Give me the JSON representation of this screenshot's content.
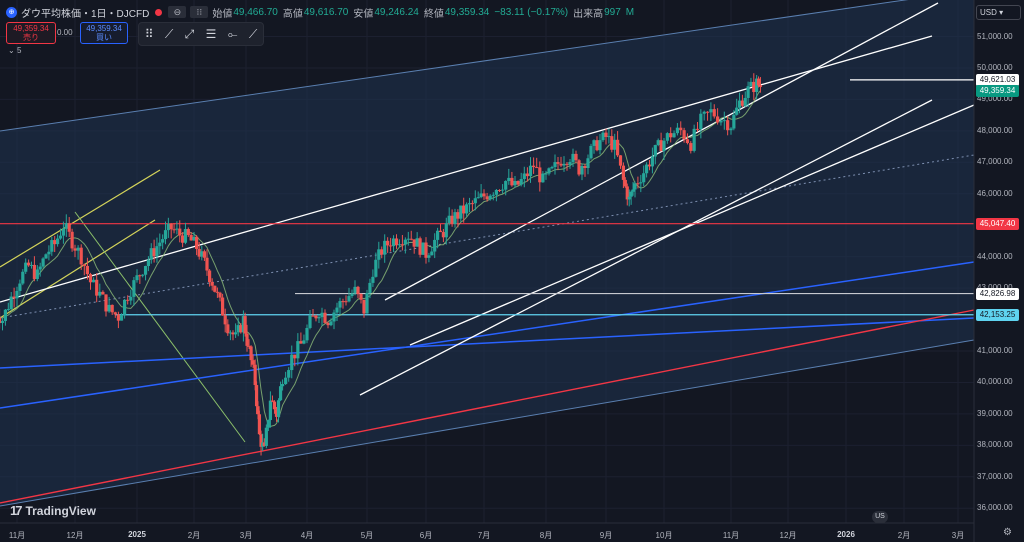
{
  "header": {
    "symbol_icon": "globe-icon",
    "title": "ダウ平均株価・1日・DJCFD",
    "open_label": "始値",
    "open_value": "49,466.70",
    "high_label": "高値",
    "high_value": "49,616.70",
    "low_label": "安値",
    "low_value": "49,246.24",
    "close_label": "終値",
    "close_value": "49,359.34",
    "change": "−83.11 (−0.17%)",
    "volume_label": "出来高",
    "volume_value": "997",
    "volume_unit": "M"
  },
  "trade": {
    "sell_price": "49,359.34",
    "sell_label": "売り",
    "spread": "0.00",
    "buy_price": "49,359.34",
    "buy_label": "買い"
  },
  "volume_toggle": "5",
  "currency": "USD",
  "logo_text": "TradingView",
  "flag_text": "US",
  "colors": {
    "background": "#131722",
    "channel_fill": "#1f3350",
    "up": "#26a69a",
    "down": "#ef5350",
    "resistance_red": "#f23645",
    "support_cyan": "#5fd3f0",
    "trend_blue": "#2962ff",
    "trend_yellow": "#d4d45a"
  },
  "chart_data": {
    "type": "candlestick",
    "title": "ダウ平均株価・1日・DJCFD",
    "ylim": [
      36000,
      51500
    ],
    "y_ticks": [
      "51,000.00",
      "50,000.00",
      "49,000.00",
      "48,000.00",
      "47,000.00",
      "46,000.00",
      "44,000.00",
      "43,000.00",
      "41,000.00",
      "40,000.00",
      "39,000.00",
      "38,000.00",
      "37,000.00",
      "36,000.00"
    ],
    "x_labels": [
      "11月",
      "12月",
      "2025",
      "2月",
      "3月",
      "4月",
      "5月",
      "6月",
      "7月",
      "8月",
      "9月",
      "10月",
      "11月",
      "12月",
      "2026",
      "2月",
      "3月"
    ],
    "x_months": [
      0,
      1,
      2,
      3,
      4,
      5,
      6,
      7,
      8,
      9,
      10,
      11,
      12,
      13,
      14,
      15,
      16
    ],
    "close_path": [
      [
        -0.4,
        42300
      ],
      [
        -0.25,
        42000
      ],
      [
        -0.1,
        42700
      ],
      [
        0.05,
        43300
      ],
      [
        0.2,
        43700
      ],
      [
        0.35,
        43400
      ],
      [
        0.5,
        44100
      ],
      [
        0.65,
        44400
      ],
      [
        0.8,
        45000
      ],
      [
        0.95,
        44500
      ],
      [
        1.1,
        44000
      ],
      [
        1.25,
        43200
      ],
      [
        1.4,
        42800
      ],
      [
        1.55,
        42300
      ],
      [
        1.7,
        42100
      ],
      [
        1.85,
        42800
      ],
      [
        2.0,
        43300
      ],
      [
        2.15,
        43800
      ],
      [
        2.3,
        44200
      ],
      [
        2.45,
        44600
      ],
      [
        2.6,
        44900
      ],
      [
        2.75,
        44700
      ],
      [
        2.9,
        44600
      ],
      [
        3.05,
        44300
      ],
      [
        3.2,
        43800
      ],
      [
        3.35,
        43200
      ],
      [
        3.5,
        42500
      ],
      [
        3.65,
        41800
      ],
      [
        3.8,
        41400
      ],
      [
        3.95,
        42000
      ],
      [
        4.05,
        41000
      ],
      [
        4.15,
        40000
      ],
      [
        4.22,
        38300
      ],
      [
        4.3,
        37800
      ],
      [
        4.4,
        39500
      ],
      [
        4.5,
        39000
      ],
      [
        4.6,
        40200
      ],
      [
        4.75,
        40800
      ],
      [
        4.9,
        41200
      ],
      [
        5.05,
        41900
      ],
      [
        5.2,
        42300
      ],
      [
        5.35,
        42000
      ],
      [
        5.5,
        42400
      ],
      [
        5.65,
        42700
      ],
      [
        5.8,
        42900
      ],
      [
        5.95,
        42300
      ],
      [
        6.1,
        43600
      ],
      [
        6.25,
        44200
      ],
      [
        6.4,
        44500
      ],
      [
        6.55,
        44600
      ],
      [
        6.7,
        44700
      ],
      [
        6.85,
        44400
      ],
      [
        7.0,
        44100
      ],
      [
        7.15,
        44500
      ],
      [
        7.3,
        44800
      ],
      [
        7.45,
        45200
      ],
      [
        7.6,
        45400
      ],
      [
        7.75,
        45600
      ],
      [
        7.9,
        45800
      ],
      [
        8.05,
        46000
      ],
      [
        8.2,
        46200
      ],
      [
        8.35,
        46400
      ],
      [
        8.5,
        46200
      ],
      [
        8.65,
        46500
      ],
      [
        8.8,
        46900
      ],
      [
        8.95,
        46400
      ],
      [
        9.1,
        46700
      ],
      [
        9.25,
        47100
      ],
      [
        9.4,
        47200
      ],
      [
        9.55,
        46800
      ],
      [
        9.7,
        47200
      ],
      [
        9.85,
        47600
      ],
      [
        10.0,
        47800
      ],
      [
        10.15,
        47500
      ],
      [
        10.3,
        46400
      ],
      [
        10.4,
        45800
      ],
      [
        10.5,
        46300
      ],
      [
        10.65,
        46700
      ],
      [
        10.8,
        47200
      ],
      [
        10.95,
        47600
      ],
      [
        11.1,
        47900
      ],
      [
        11.25,
        48000
      ],
      [
        11.4,
        47600
      ],
      [
        11.55,
        48300
      ],
      [
        11.7,
        48600
      ],
      [
        11.85,
        48400
      ],
      [
        12.0,
        48200
      ],
      [
        12.15,
        48900
      ],
      [
        12.3,
        49300
      ],
      [
        12.45,
        49500
      ],
      [
        12.55,
        49400
      ]
    ],
    "horizontal_levels": [
      {
        "label": "49,621.03",
        "value": 49621.03
      },
      {
        "label": "45,047.40",
        "value": 45047.4
      },
      {
        "label": "42,826.98",
        "value": 42826.98
      },
      {
        "label": "42,153.25",
        "value": 42153.25
      }
    ],
    "last_price": {
      "label": "49,359.34",
      "value": 49359.34
    },
    "annotations": []
  }
}
